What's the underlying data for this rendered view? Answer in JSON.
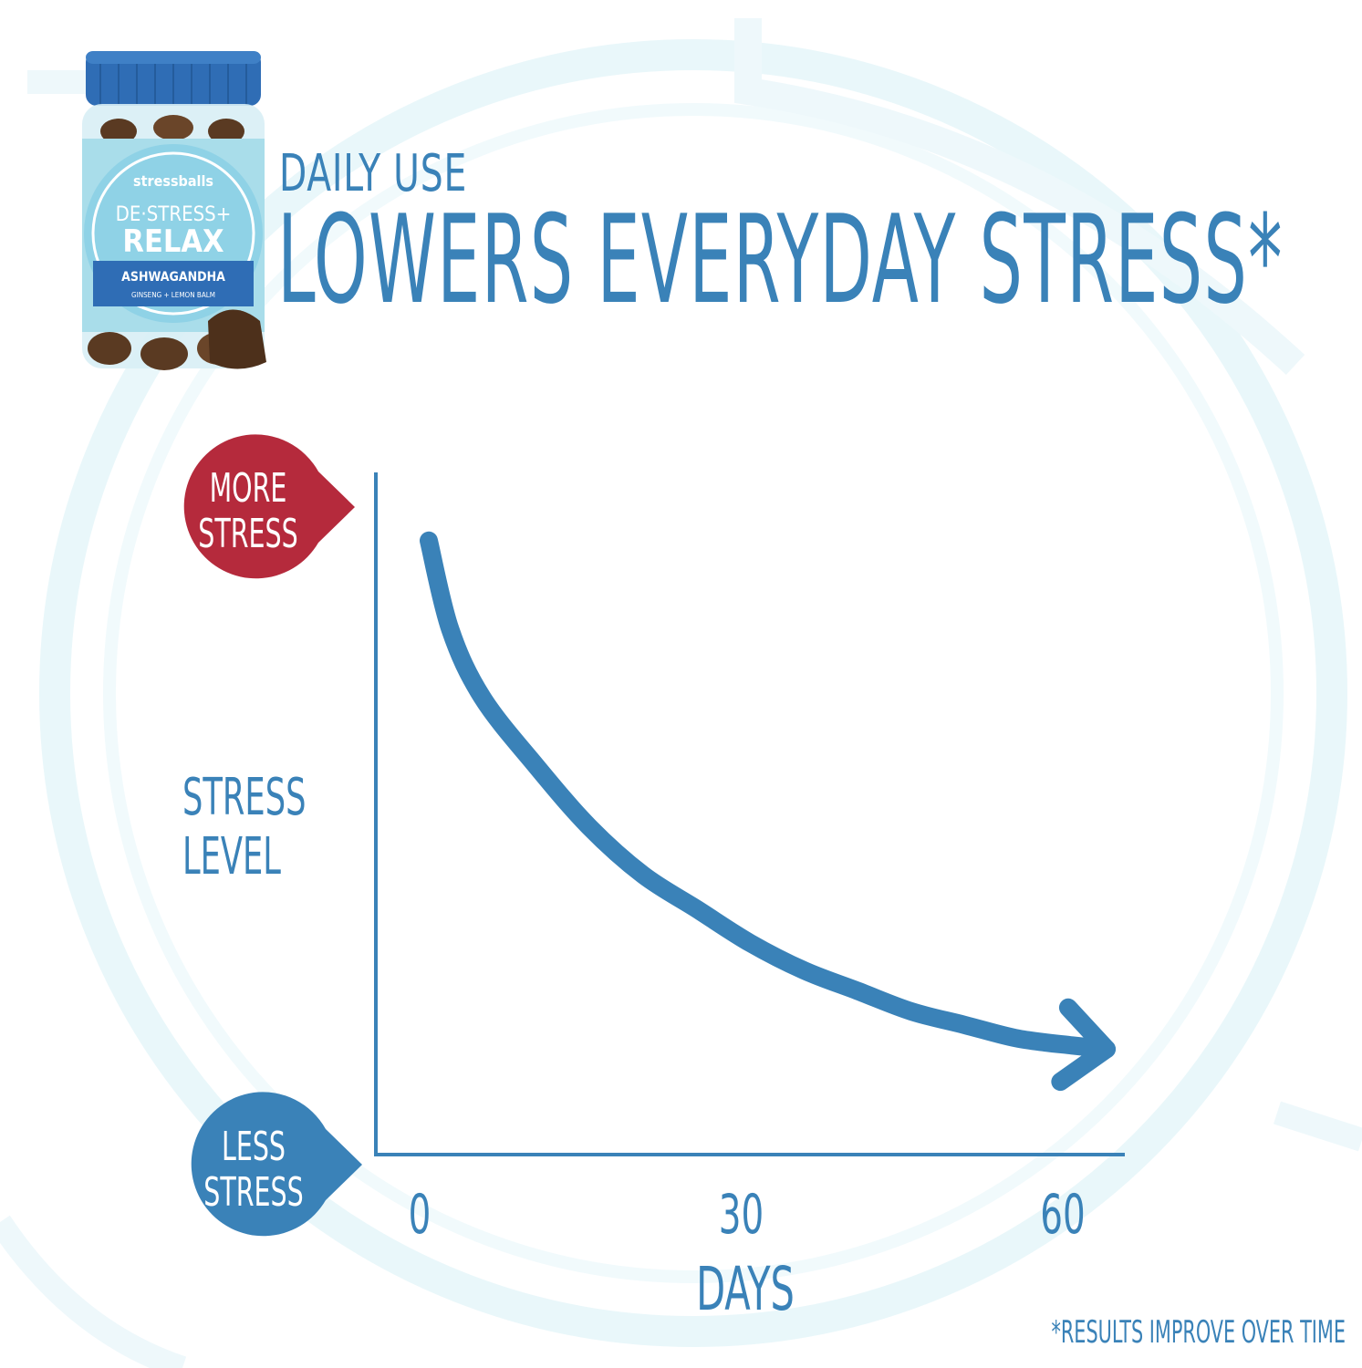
{
  "header": {
    "eyebrow": "DAILY USE",
    "headline": "LOWERS EVERYDAY STRESS*"
  },
  "product": {
    "brand": "stressballs",
    "name_line1": "DE·STRESS+",
    "name_line2": "RELAX",
    "ingredient": "ASHWAGANDHA",
    "sub_ingredients": "GINSENG + LEMON BALM"
  },
  "colors": {
    "accent": "#3a82b8",
    "more_stress": "#b52a3c",
    "less_stress": "#3a82b8",
    "ring": "#e8f6f9",
    "bottle_blue": "#2f6db5",
    "label_light": "#a9ddea",
    "gummy": "#5a3a22"
  },
  "chart_data": {
    "type": "line",
    "title": "LOWERS EVERYDAY STRESS*",
    "xlabel": "DAYS",
    "ylabel": "STRESS LEVEL",
    "x_ticks": [
      "0",
      "30",
      "60"
    ],
    "y_top_marker": "MORE STRESS",
    "y_bottom_marker": "LESS STRESS",
    "xlim": [
      0,
      60
    ],
    "ylim": [
      0,
      1
    ],
    "series": [
      {
        "x": [
          0,
          2,
          5,
          10,
          15,
          20,
          25,
          30,
          35,
          40,
          45,
          50,
          55,
          60
        ],
        "y": [
          0.9,
          0.77,
          0.67,
          0.57,
          0.48,
          0.41,
          0.36,
          0.31,
          0.27,
          0.24,
          0.21,
          0.19,
          0.17,
          0.16
        ]
      }
    ],
    "footnote": "*RESULTS IMPROVE OVER TIME"
  }
}
